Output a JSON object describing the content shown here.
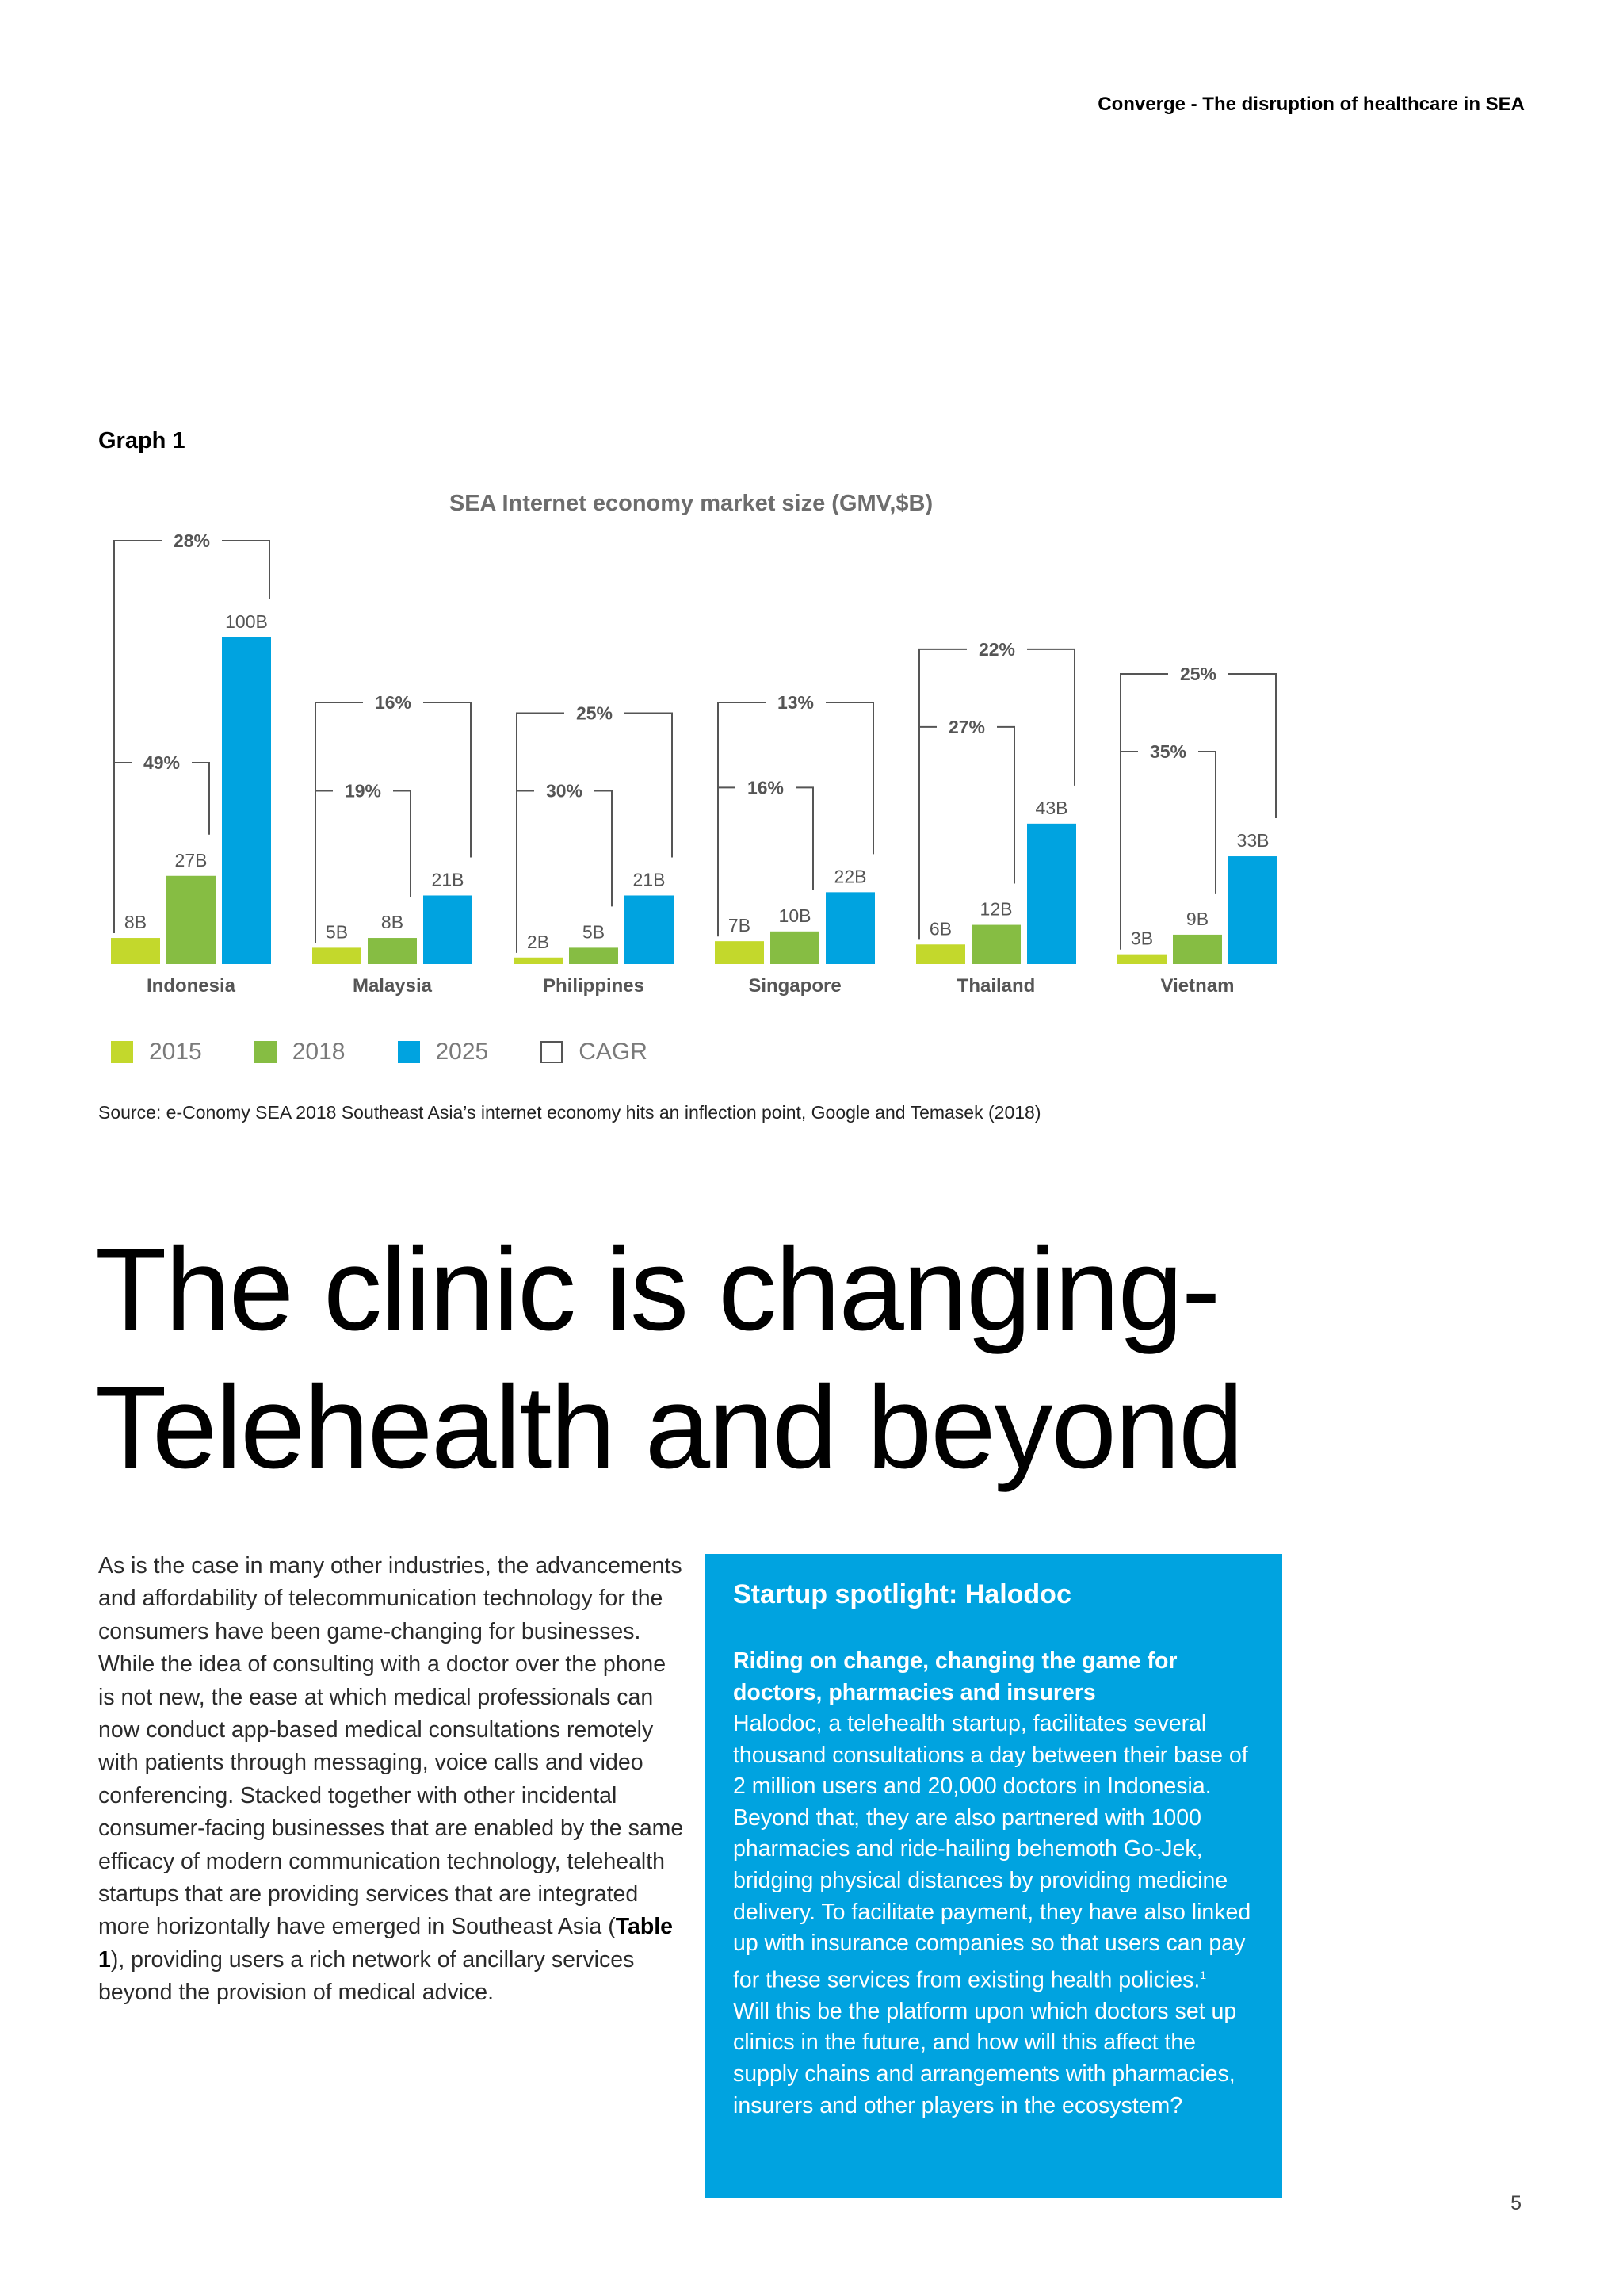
{
  "header": {
    "title": "Converge - The disruption of healthcare in SEA"
  },
  "graph_label": "Graph 1",
  "chart_data": {
    "type": "bar",
    "title": "SEA Internet economy market size (GMV,$B)",
    "categories": [
      "Indonesia",
      "Malaysia",
      "Philippines",
      "Singapore",
      "Thailand",
      "Vietnam"
    ],
    "series": [
      {
        "name": "2015",
        "values": [
          8,
          5,
          2,
          7,
          6,
          3
        ],
        "labels": [
          "8B",
          "5B",
          "2B",
          "7B",
          "6B",
          "3B"
        ],
        "color": "#c3d82c"
      },
      {
        "name": "2018",
        "values": [
          27,
          8,
          5,
          10,
          12,
          9
        ],
        "labels": [
          "27B",
          "8B",
          "5B",
          "10B",
          "12B",
          "9B"
        ],
        "color": "#86bd43"
      },
      {
        "name": "2025",
        "values": [
          100,
          21,
          21,
          22,
          43,
          33
        ],
        "labels": [
          "100B",
          "21B",
          "21B",
          "22B",
          "43B",
          "33B"
        ],
        "color": "#00a3e0"
      }
    ],
    "cagr_2015_2018": [
      "49%",
      "19%",
      "30%",
      "16%",
      "27%",
      "35%"
    ],
    "cagr_2015_2025": [
      "28%",
      "16%",
      "25%",
      "13%",
      "22%",
      "25%"
    ],
    "legend": [
      "2015",
      "2018",
      "2025",
      "CAGR"
    ],
    "ylim": [
      0,
      100
    ],
    "source": "Source: e-Conomy SEA 2018 Southeast Asia’s internet economy hits an inflection point, Google and Temasek (2018)"
  },
  "headline": {
    "line1": "The clinic is changing-",
    "line2": "Telehealth and beyond"
  },
  "body": {
    "part1": "As is the case in many other industries, the advancements and affordability of telecommunication technology for the consumers have been game-changing for businesses. While the idea of consulting with a doctor over the phone is not new, the ease at which medical professionals can now conduct app-based medical consultations remotely with patients through messaging, voice calls and video conferencing. Stacked together with other incidental consumer-facing businesses that are enabled by the same efficacy of modern communication technology, telehealth startups that are providing services that are integrated more horizontally have emerged in Southeast Asia (",
    "bold": "Table 1",
    "part2": "), providing users a rich network of ancillary services beyond the provision of medical advice."
  },
  "spotlight": {
    "title": "Startup spotlight: Halodoc",
    "subtitle": "Riding on change, changing the game for doctors, pharmacies and insurers",
    "body": "Halodoc, a telehealth startup, facilitates several thousand consultations a day between their base of 2 million users and 20,000 doctors in Indonesia. Beyond that, they are also partnered with 1000 pharmacies and ride-hailing behemoth Go-Jek, bridging physical distances by providing medicine delivery. To facilitate payment, they have also linked up with insurance companies so that users can pay for these services from existing health policies.",
    "footnote": "1",
    "body2": "Will this be the platform upon which doctors set up clinics in the future, and how will this affect the supply chains and arrangements with pharmacies, insurers and other players in the ecosystem?"
  },
  "page_number": "5"
}
